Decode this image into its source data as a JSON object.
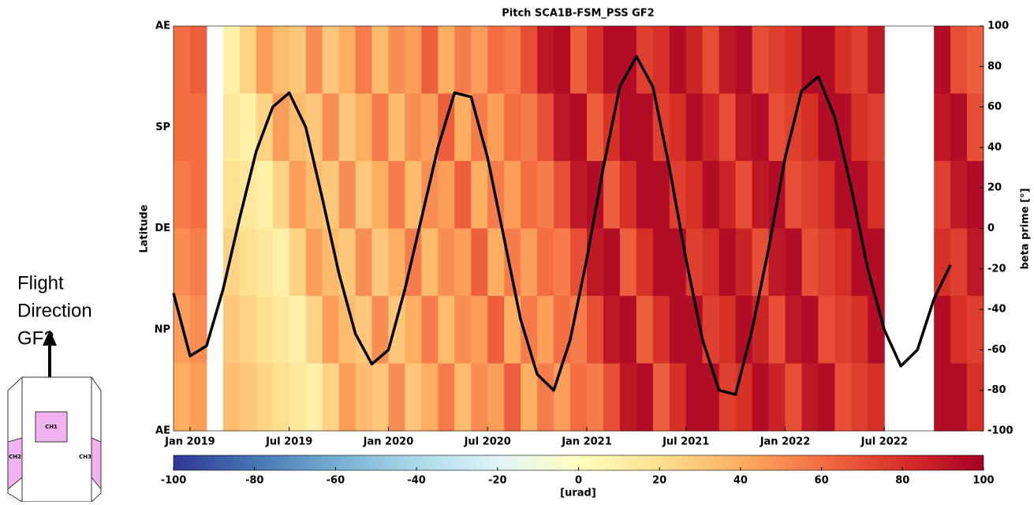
{
  "chart_data": {
    "type": "heatmap",
    "title": "Pitch SCA1B-FSM_PSS GF2",
    "ylabel": "Latitude",
    "y2label": "beta prime [°]",
    "colorbar_label": "[urad]",
    "ylabels": [
      "AE",
      "SP",
      "DE",
      "NP",
      "AE"
    ],
    "x": [
      "2018-12",
      "2019-01",
      "2019-02",
      "2019-03",
      "2019-04",
      "2019-05",
      "2019-06",
      "2019-07",
      "2019-08",
      "2019-09",
      "2019-10",
      "2019-11",
      "2019-12",
      "2020-01",
      "2020-02",
      "2020-03",
      "2020-04",
      "2020-05",
      "2020-06",
      "2020-07",
      "2020-08",
      "2020-09",
      "2020-10",
      "2020-11",
      "2020-12",
      "2021-01",
      "2021-02",
      "2021-03",
      "2021-04",
      "2021-05",
      "2021-06",
      "2021-07",
      "2021-08",
      "2021-09",
      "2021-10",
      "2021-11",
      "2021-12",
      "2022-01",
      "2022-02",
      "2022-03",
      "2022-04",
      "2022-05",
      "2022-06",
      "2022-07",
      "2022-08",
      "2022-09",
      "2022-10",
      "2022-11",
      "2022-12"
    ],
    "xticks": [
      {
        "value": "2019-01",
        "label": "Jan 2019"
      },
      {
        "value": "2019-07",
        "label": "Jul 2019"
      },
      {
        "value": "2020-01",
        "label": "Jan 2020"
      },
      {
        "value": "2020-07",
        "label": "Jul 2020"
      },
      {
        "value": "2021-01",
        "label": "Jan 2021"
      },
      {
        "value": "2021-07",
        "label": "Jul 2021"
      },
      {
        "value": "2022-01",
        "label": "Jan 2022"
      },
      {
        "value": "2022-07",
        "label": "Jul 2022"
      }
    ],
    "z": [
      [
        60,
        65,
        null,
        10,
        25,
        45,
        35,
        30,
        50,
        30,
        40,
        55,
        35,
        50,
        45,
        65,
        40,
        55,
        45,
        60,
        55,
        70,
        90,
        95,
        65,
        80,
        95,
        95,
        75,
        80,
        95,
        85,
        70,
        90,
        95,
        70,
        75,
        80,
        95,
        95,
        80,
        75,
        90,
        null,
        null,
        null,
        95,
        70,
        65
      ],
      [
        60,
        60,
        null,
        15,
        10,
        25,
        45,
        35,
        30,
        50,
        30,
        40,
        55,
        35,
        50,
        45,
        65,
        40,
        55,
        45,
        60,
        55,
        70,
        90,
        95,
        65,
        80,
        95,
        95,
        75,
        80,
        95,
        85,
        70,
        90,
        95,
        70,
        75,
        80,
        95,
        95,
        80,
        75,
        null,
        null,
        null,
        90,
        95,
        70
      ],
      [
        55,
        60,
        null,
        20,
        15,
        10,
        25,
        45,
        35,
        30,
        50,
        30,
        40,
        55,
        35,
        50,
        45,
        65,
        40,
        55,
        45,
        60,
        55,
        70,
        90,
        95,
        65,
        80,
        95,
        95,
        75,
        80,
        95,
        85,
        70,
        90,
        95,
        70,
        75,
        80,
        95,
        95,
        80,
        null,
        null,
        null,
        75,
        90,
        95
      ],
      [
        50,
        55,
        null,
        25,
        20,
        15,
        10,
        25,
        45,
        35,
        30,
        50,
        30,
        40,
        55,
        35,
        50,
        45,
        65,
        40,
        55,
        45,
        60,
        55,
        70,
        90,
        95,
        65,
        80,
        95,
        95,
        75,
        80,
        95,
        85,
        70,
        90,
        95,
        70,
        75,
        80,
        95,
        95,
        null,
        null,
        null,
        80,
        75,
        90
      ],
      [
        45,
        50,
        null,
        30,
        25,
        20,
        15,
        10,
        25,
        45,
        35,
        30,
        50,
        30,
        40,
        55,
        35,
        50,
        45,
        65,
        40,
        55,
        45,
        60,
        55,
        70,
        90,
        95,
        65,
        80,
        95,
        95,
        75,
        80,
        95,
        85,
        70,
        90,
        95,
        70,
        75,
        80,
        95,
        null,
        null,
        null,
        95,
        80,
        75
      ],
      [
        40,
        45,
        null,
        35,
        30,
        25,
        20,
        15,
        10,
        25,
        45,
        35,
        30,
        50,
        30,
        40,
        55,
        35,
        50,
        45,
        65,
        40,
        55,
        45,
        60,
        55,
        70,
        90,
        95,
        65,
        80,
        95,
        95,
        75,
        80,
        95,
        85,
        70,
        90,
        95,
        70,
        75,
        80,
        null,
        null,
        null,
        95,
        95,
        80
      ]
    ],
    "clim": [
      -100,
      100
    ],
    "cticks": [
      -100,
      -80,
      -60,
      -40,
      -20,
      0,
      20,
      40,
      60,
      80,
      100
    ],
    "colormap": [
      "#313695",
      "#4575b4",
      "#74add1",
      "#abd9e9",
      "#e0f3f8",
      "#ffffbf",
      "#fee090",
      "#fdae61",
      "#f46d43",
      "#d73027",
      "#a50026"
    ],
    "y2lim": [
      -100,
      100
    ],
    "y2ticks": [
      -100,
      -80,
      -60,
      -40,
      -20,
      0,
      20,
      40,
      60,
      80,
      100
    ],
    "series": [
      {
        "color": "#000000",
        "axis": "y2",
        "values": [
          -32,
          -63,
          -58,
          -30,
          5,
          38,
          60,
          67,
          50,
          15,
          -22,
          -52,
          -67,
          -60,
          -30,
          5,
          40,
          67,
          65,
          35,
          -5,
          -45,
          -72,
          -80,
          -55,
          -15,
          30,
          70,
          85,
          70,
          30,
          -15,
          -55,
          -80,
          -82,
          -50,
          -10,
          35,
          68,
          75,
          55,
          20,
          -20,
          -50,
          -68,
          -60,
          -35,
          -18,
          null
        ]
      }
    ]
  },
  "diagram": {
    "caption": [
      "Flight",
      "Direction",
      "GF2"
    ],
    "boxes": [
      "CH1",
      "CH2",
      "CH3"
    ]
  }
}
